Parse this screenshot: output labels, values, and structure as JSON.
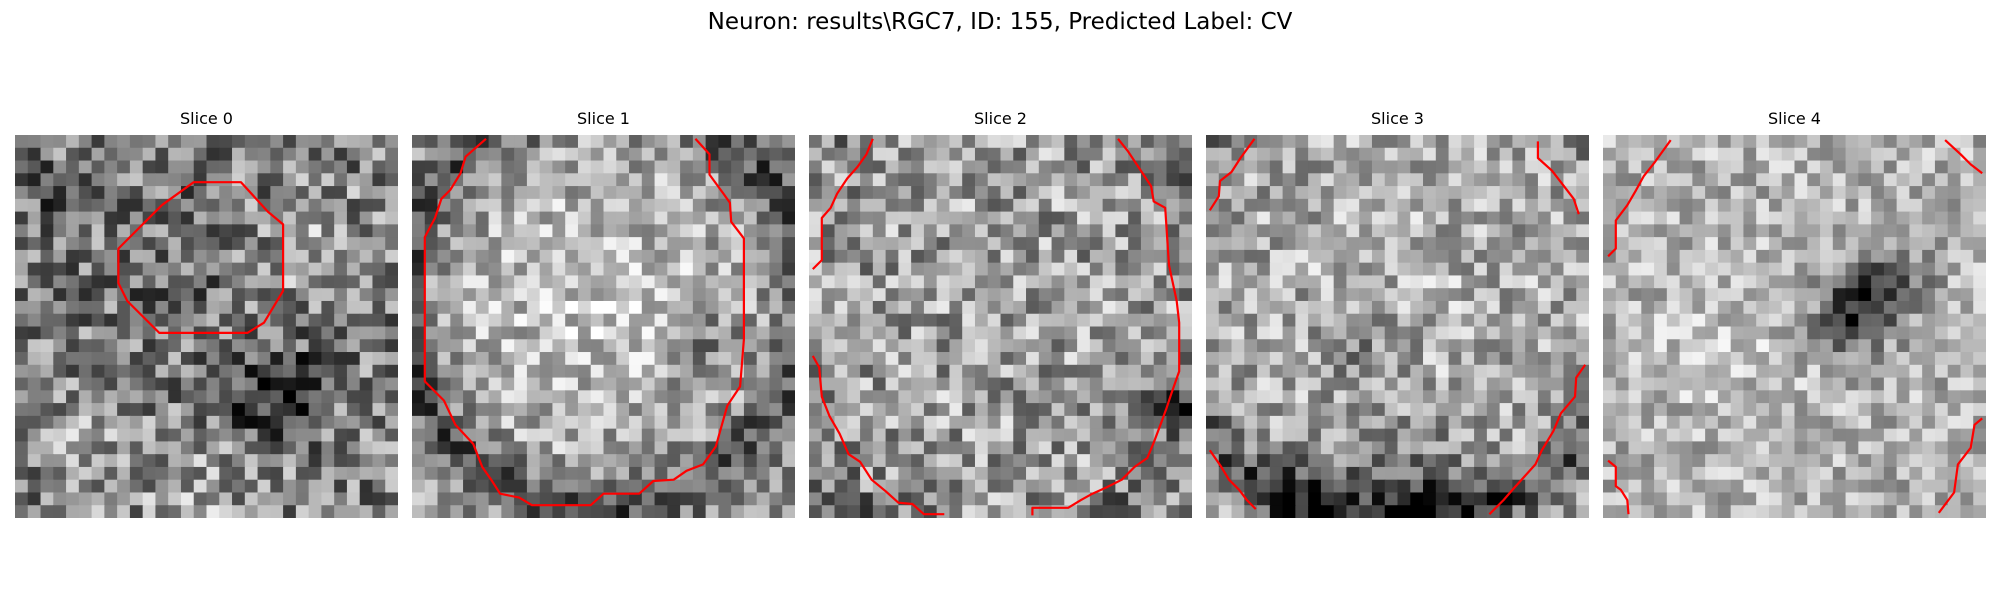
{
  "figure": {
    "suptitle": "Neuron: results\\RGC7, ID: 155, Predicted Label: CV",
    "contour_color": "#ff0000",
    "colormap": "gray"
  },
  "panels": [
    {
      "title": "Slice 0",
      "contour": "small ring left of center"
    },
    {
      "title": "Slice 1",
      "contour": "large ring filling the frame"
    },
    {
      "title": "Slice 2",
      "contour": "large ring clipped at the edges"
    },
    {
      "title": "Slice 3",
      "contour": "corner arcs"
    },
    {
      "title": "Slice 4",
      "contour": "corner arcs"
    }
  ]
}
